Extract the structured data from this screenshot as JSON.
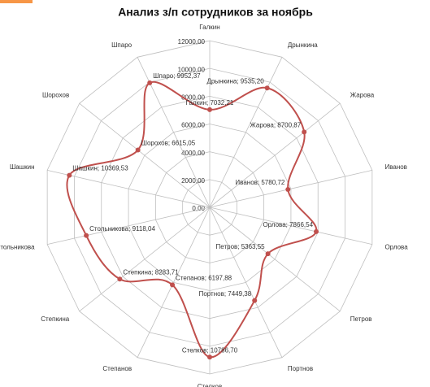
{
  "chart_data": {
    "type": "radar",
    "title": "Анализ з/п сотрудников за ноябрь",
    "categories": [
      "Галкин",
      "Дрынкина",
      "Жарова",
      "Иванов",
      "Орлова",
      "Петров",
      "Портнов",
      "Стелков",
      "Степанов",
      "Степкина",
      "Стольникова",
      "Шашкин",
      "Шорохов",
      "Шпаро"
    ],
    "values": [
      7032.21,
      9535.2,
      8700.87,
      5780.72,
      7866.54,
      5363.55,
      7449.38,
      10786.7,
      6197.88,
      8283.71,
      9118.04,
      10369.53,
      6615.05,
      9952.37
    ],
    "value_labels": [
      "Галкин; 7032,21",
      "Дрынкина; 9535,20",
      "Жарова; 8700,87",
      "Иванов; 5780,72",
      "Орлова; 7866,54",
      "Петров; 5363,55",
      "Портнов; 7449,38",
      "Стелков; 10786,70",
      "Степанов; 6197,88",
      "Степкина; 8283,71",
      "Стольникова; 9118,04",
      "Шашкин; 10369,53",
      "Шорохов; 6615,05",
      "Шпаро; 9952,37"
    ],
    "color": "#c0504d",
    "ylim": [
      0,
      12000
    ],
    "yticks": [
      {
        "value": 0,
        "label": "0,00"
      },
      {
        "value": 2000,
        "label": "2000,00"
      },
      {
        "value": 4000,
        "label": "4000,00"
      },
      {
        "value": 6000,
        "label": "6000,00"
      },
      {
        "value": 8000,
        "label": "8000,00"
      },
      {
        "value": 10000,
        "label": "10000,00"
      },
      {
        "value": 12000,
        "label": "12000,00"
      }
    ],
    "grid": true
  }
}
